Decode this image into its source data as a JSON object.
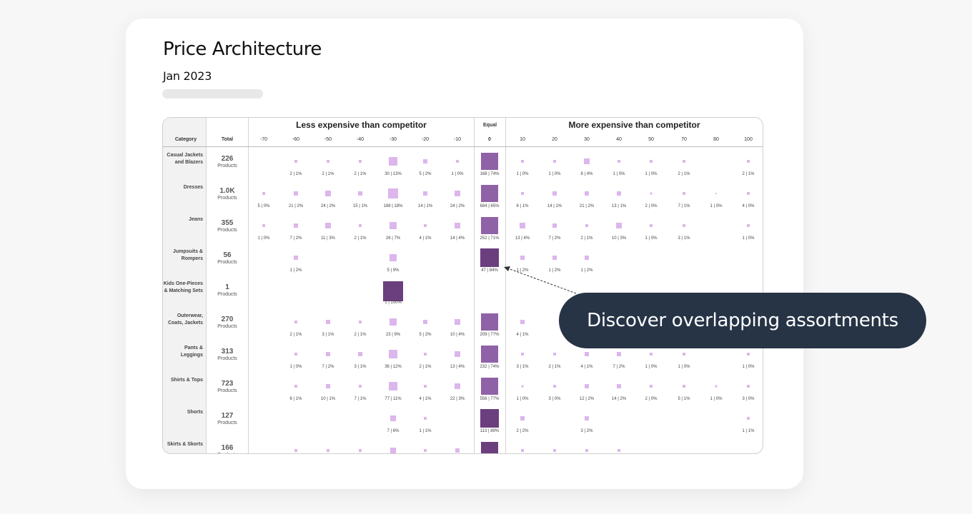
{
  "title": "Price Architecture",
  "subtitle": "Jan 2023",
  "callout": "Discover overlapping assortments",
  "colors": {
    "accent": "#263446",
    "equal": "#8f61a7",
    "pale": "#dcb6ec",
    "dark": "#6b3f7e"
  },
  "table": {
    "groups": {
      "less": "Less expensive than competitor",
      "equal": "Equal",
      "more": "More expensive than competitor"
    },
    "headers": {
      "category": "Category",
      "total": "Total"
    },
    "columns": [
      "-70",
      "-60",
      "-50",
      "-40",
      "-30",
      "-20",
      "-10",
      "0",
      "10",
      "20",
      "30",
      "40",
      "50",
      "70",
      "80",
      "100"
    ],
    "rows": [
      {
        "category": "Casual Jackets and Blazers",
        "total": "226",
        "unit": "Products",
        "cells": [
          null,
          {
            "l": "2 | 1%",
            "s": 1
          },
          {
            "l": "2 | 1%",
            "s": 1
          },
          {
            "l": "2 | 1%",
            "s": 1
          },
          {
            "l": "30 | 13%",
            "s": 3
          },
          {
            "l": "5 | 2%",
            "s": 1.5
          },
          {
            "l": "1 | 0%",
            "s": 1
          },
          {
            "l": "168 | 74%",
            "s": 6
          },
          {
            "l": "1 | 0%",
            "s": 1
          },
          {
            "l": "1 | 0%",
            "s": 1
          },
          {
            "l": "8 | 4%",
            "s": 2
          },
          {
            "l": "1 | 0%",
            "s": 1
          },
          {
            "l": "1 | 0%",
            "s": 1
          },
          {
            "l": "2 | 1%",
            "s": 1
          },
          null,
          {
            "l": "2 | 1%",
            "s": 1
          }
        ]
      },
      {
        "category": "Dresses",
        "total": "1.0K",
        "unit": "Products",
        "cells": [
          {
            "l": "5 | 0%",
            "s": 1
          },
          {
            "l": "21 | 2%",
            "s": 1.5
          },
          {
            "l": "24 | 2%",
            "s": 2
          },
          {
            "l": "15 | 1%",
            "s": 1.5
          },
          {
            "l": "188 | 18%",
            "s": 3.5
          },
          {
            "l": "14 | 1%",
            "s": 1.5
          },
          {
            "l": "24 | 2%",
            "s": 2
          },
          {
            "l": "684 | 65%",
            "s": 6
          },
          {
            "l": "6 | 1%",
            "s": 1
          },
          {
            "l": "14 | 1%",
            "s": 1.5
          },
          {
            "l": "21 | 2%",
            "s": 1.5
          },
          {
            "l": "13 | 1%",
            "s": 1.5
          },
          {
            "l": "2 | 0%",
            "s": 0.8
          },
          {
            "l": "7 | 1%",
            "s": 1
          },
          {
            "l": "1 | 0%",
            "s": 0.6
          },
          {
            "l": "4 | 0%",
            "s": 1
          }
        ]
      },
      {
        "category": "Jeans",
        "total": "355",
        "unit": "Products",
        "cells": [
          {
            "l": "1 | 0%",
            "s": 1
          },
          {
            "l": "7 | 2%",
            "s": 1.5
          },
          {
            "l": "11 | 3%",
            "s": 2
          },
          {
            "l": "2 | 1%",
            "s": 1
          },
          {
            "l": "26 | 7%",
            "s": 2.5
          },
          {
            "l": "4 | 1%",
            "s": 1
          },
          {
            "l": "14 | 4%",
            "s": 2
          },
          {
            "l": "252 | 71%",
            "s": 6
          },
          {
            "l": "13 | 4%",
            "s": 2
          },
          {
            "l": "7 | 2%",
            "s": 1.5
          },
          {
            "l": "2 | 1%",
            "s": 1
          },
          {
            "l": "10 | 3%",
            "s": 2
          },
          {
            "l": "1 | 0%",
            "s": 1
          },
          {
            "l": "3 | 1%",
            "s": 1
          },
          null,
          {
            "l": "1 | 0%",
            "s": 1
          }
        ]
      },
      {
        "category": "Jumpsuits & Rompers",
        "total": "56",
        "unit": "Products",
        "cells": [
          null,
          {
            "l": "1 | 2%",
            "s": 1.5
          },
          null,
          null,
          {
            "l": "5 | 9%",
            "s": 2.5
          },
          null,
          null,
          {
            "l": "47 | 84%",
            "s": 6.5,
            "dark": true
          },
          {
            "l": "1 | 2%",
            "s": 1.5
          },
          {
            "l": "1 | 2%",
            "s": 1.5
          },
          {
            "l": "1 | 2%",
            "s": 1.5
          },
          null,
          null,
          null,
          null,
          null
        ]
      },
      {
        "category": "Kids One-Pieces & Matching Sets",
        "total": "1",
        "unit": "Products",
        "cells": [
          null,
          null,
          null,
          null,
          {
            "l": "1 | 100%",
            "s": 7,
            "dark": true
          },
          null,
          null,
          null,
          null,
          null,
          null,
          null,
          null,
          null,
          null,
          null
        ]
      },
      {
        "category": "Outerwear, Coats, Jackets",
        "total": "270",
        "unit": "Products",
        "cells": [
          null,
          {
            "l": "2 | 1%",
            "s": 1
          },
          {
            "l": "3 | 1%",
            "s": 1.5
          },
          {
            "l": "2 | 1%",
            "s": 1
          },
          {
            "l": "23 | 9%",
            "s": 2.5
          },
          {
            "l": "5 | 2%",
            "s": 1.5
          },
          {
            "l": "10 | 4%",
            "s": 2
          },
          {
            "l": "209 | 77%",
            "s": 6
          },
          {
            "l": "4 | 1%",
            "s": 1.5
          },
          null,
          null,
          null,
          null,
          null,
          null,
          null
        ]
      },
      {
        "category": "Pants & Leggings",
        "total": "313",
        "unit": "Products",
        "cells": [
          null,
          {
            "l": "1 | 0%",
            "s": 1
          },
          {
            "l": "7 | 2%",
            "s": 1.5
          },
          {
            "l": "3 | 1%",
            "s": 1.5
          },
          {
            "l": "36 | 12%",
            "s": 3
          },
          {
            "l": "2 | 1%",
            "s": 1
          },
          {
            "l": "13 | 4%",
            "s": 2
          },
          {
            "l": "232 | 74%",
            "s": 6
          },
          {
            "l": "3 | 1%",
            "s": 1
          },
          {
            "l": "2 | 1%",
            "s": 1
          },
          {
            "l": "4 | 1%",
            "s": 1.5
          },
          {
            "l": "7 | 2%",
            "s": 1.5
          },
          {
            "l": "1 | 0%",
            "s": 1
          },
          {
            "l": "1 | 0%",
            "s": 1
          },
          null,
          {
            "l": "1 | 0%",
            "s": 1
          }
        ]
      },
      {
        "category": "Shirts & Tops",
        "total": "723",
        "unit": "Products",
        "cells": [
          null,
          {
            "l": "6 | 1%",
            "s": 1
          },
          {
            "l": "10 | 1%",
            "s": 1.5
          },
          {
            "l": "7 | 1%",
            "s": 1
          },
          {
            "l": "77 | 11%",
            "s": 3
          },
          {
            "l": "4 | 1%",
            "s": 1
          },
          {
            "l": "22 | 3%",
            "s": 2
          },
          {
            "l": "556 | 77%",
            "s": 6
          },
          {
            "l": "1 | 0%",
            "s": 0.8
          },
          {
            "l": "3 | 0%",
            "s": 1
          },
          {
            "l": "12 | 2%",
            "s": 1.5
          },
          {
            "l": "14 | 2%",
            "s": 1.5
          },
          {
            "l": "2 | 0%",
            "s": 1
          },
          {
            "l": "5 | 1%",
            "s": 1
          },
          {
            "l": "1 | 0%",
            "s": 0.8
          },
          {
            "l": "3 | 0%",
            "s": 1
          }
        ]
      },
      {
        "category": "Shorts",
        "total": "127",
        "unit": "Products",
        "cells": [
          null,
          null,
          null,
          null,
          {
            "l": "7 | 6%",
            "s": 2
          },
          {
            "l": "1 | 1%",
            "s": 1
          },
          null,
          {
            "l": "113 | 89%",
            "s": 6.5,
            "dark": true
          },
          {
            "l": "2 | 2%",
            "s": 1.5
          },
          null,
          {
            "l": "3 | 2%",
            "s": 1.5
          },
          null,
          null,
          null,
          null,
          {
            "l": "1 | 1%",
            "s": 1
          }
        ]
      },
      {
        "category": "Skirts & Skorts",
        "total": "166",
        "unit": "Products",
        "cells": [
          null,
          {
            "l": "",
            "s": 1
          },
          {
            "l": "",
            "s": 1
          },
          {
            "l": "",
            "s": 1
          },
          {
            "l": "",
            "s": 2
          },
          {
            "l": "",
            "s": 1
          },
          {
            "l": "",
            "s": 1.5
          },
          {
            "l": "",
            "s": 6,
            "dark": true
          },
          {
            "l": "",
            "s": 1
          },
          {
            "l": "",
            "s": 1
          },
          {
            "l": "",
            "s": 1
          },
          {
            "l": "",
            "s": 1
          },
          null,
          null,
          null,
          null
        ]
      }
    ]
  }
}
